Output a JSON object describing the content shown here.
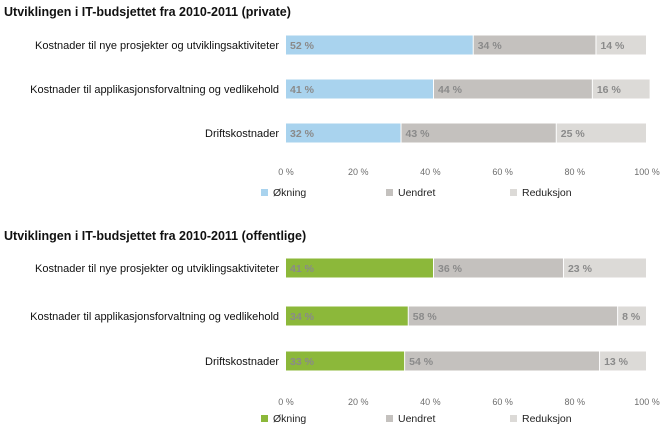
{
  "chart_data": [
    {
      "type": "bar",
      "orientation": "horizontal",
      "stacked": true,
      "title": "Utviklingen i IT-budsjettet fra 2010-2011 (private)",
      "categories": [
        "Kostnader til nye prosjekter og utviklingsaktiviteter",
        "Kostnader til applikasjonsforvaltning og vedlikehold",
        "Driftskostnader"
      ],
      "series": [
        {
          "name": "Økning",
          "color": "#a9d3ee",
          "values": [
            52,
            41,
            32
          ]
        },
        {
          "name": "Uendret",
          "color": "#c4c1be",
          "values": [
            34,
            44,
            43
          ]
        },
        {
          "name": "Reduksjon",
          "color": "#dcdad7",
          "values": [
            14,
            16,
            25
          ]
        }
      ],
      "xlim": [
        0,
        100
      ],
      "ticks": [
        "0 %",
        "20 %",
        "40 %",
        "60 %",
        "80 %",
        "100 %"
      ],
      "value_suffix": " %",
      "legend_position": "bottom"
    },
    {
      "type": "bar",
      "orientation": "horizontal",
      "stacked": true,
      "title": "Utviklingen i IT-budsjettet fra 2010-2011 (offentlige)",
      "categories": [
        "Kostnader til nye prosjekter og utviklingsaktiviteter",
        "Kostnader til applikasjonsforvaltning og vedlikehold",
        "Driftskostnader"
      ],
      "series": [
        {
          "name": "Økning",
          "color": "#8cb83a",
          "values": [
            41,
            34,
            33
          ]
        },
        {
          "name": "Uendret",
          "color": "#c4c1be",
          "values": [
            36,
            58,
            54
          ]
        },
        {
          "name": "Reduksjon",
          "color": "#dcdad7",
          "values": [
            23,
            8,
            13
          ]
        }
      ],
      "xlim": [
        0,
        100
      ],
      "ticks": [
        "0 %",
        "20 %",
        "40 %",
        "60 %",
        "80 %",
        "100 %"
      ],
      "value_suffix": " %",
      "legend_position": "bottom"
    }
  ]
}
